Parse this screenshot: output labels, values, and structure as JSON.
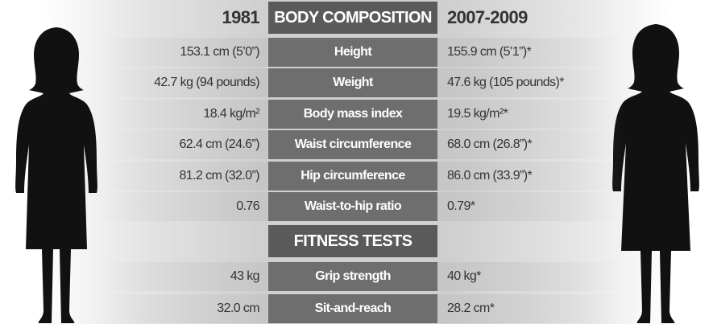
{
  "header": {
    "left": "1981",
    "center": "BODY COMPOSITION",
    "right": "2007-2009"
  },
  "body_composition": [
    {
      "label": "Height",
      "left": "153.1 cm (5’0”)",
      "right": "155.9 cm (5’1”)*"
    },
    {
      "label": "Weight",
      "left": "42.7 kg (94 pounds)",
      "right": "47.6 kg (105 pounds)*"
    },
    {
      "label": "Body mass index",
      "left": "18.4 kg/m²",
      "right": "19.5 kg/m²*"
    },
    {
      "label": "Waist circumference",
      "left": "62.4 cm (24.6”)",
      "right": "68.0 cm (26.8”)*"
    },
    {
      "label": "Hip circumference",
      "left": "81.2 cm (32.0”)",
      "right": "86.0 cm (33.9”)*"
    },
    {
      "label": "Waist-to-hip ratio",
      "left": "0.76",
      "right": "0.79*"
    }
  ],
  "fitness_header": "FITNESS TESTS",
  "fitness_tests": [
    {
      "label": "Grip strength",
      "left": "43 kg",
      "right": "40 kg*"
    },
    {
      "label": "Sit-and-reach",
      "left": "32.0 cm",
      "right": "28.2 cm*"
    }
  ]
}
